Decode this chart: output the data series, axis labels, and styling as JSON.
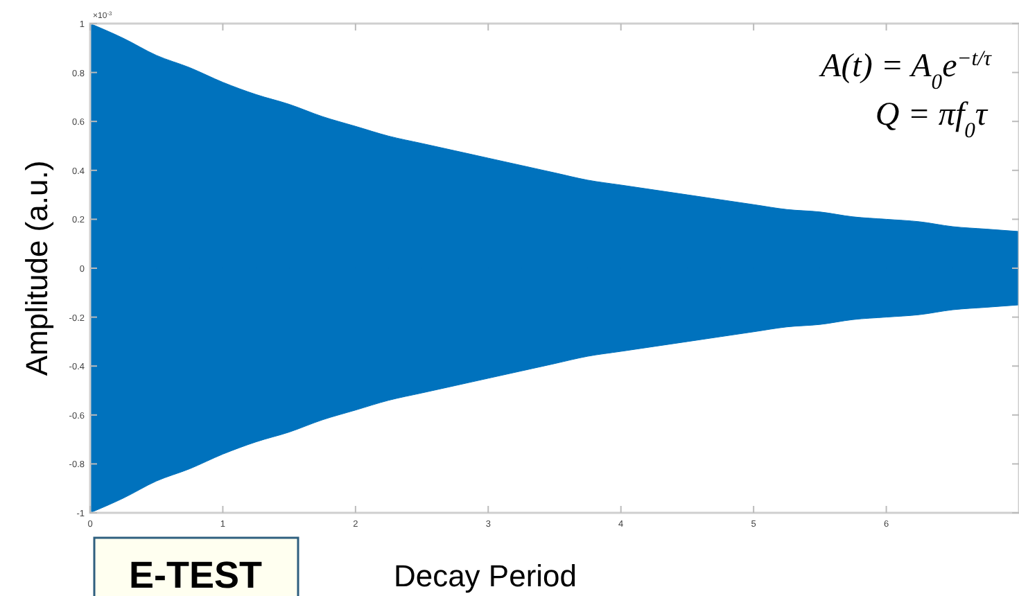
{
  "chart_data": {
    "type": "area",
    "xlabel": "Decay Period",
    "ylabel": "Amplitude (a.u.)",
    "x": [
      0,
      0.25,
      0.5,
      0.75,
      1,
      1.25,
      1.5,
      1.75,
      2,
      2.25,
      2.5,
      2.75,
      3,
      3.25,
      3.5,
      3.75,
      4,
      4.25,
      4.5,
      4.75,
      5,
      5.25,
      5.5,
      5.75,
      6,
      6.25,
      6.5,
      6.75,
      7
    ],
    "series": [
      {
        "color": "#0072bd",
        "values": [
          1,
          0.94,
          0.87,
          0.82,
          0.76,
          0.71,
          0.67,
          0.62,
          0.58,
          0.54,
          0.51,
          0.48,
          0.45,
          0.42,
          0.39,
          0.36,
          0.34,
          0.32,
          0.3,
          0.28,
          0.26,
          0.24,
          0.23,
          0.21,
          0.2,
          0.19,
          0.17,
          0.16,
          0.15
        ]
      },
      {
        "color": "#0072bd",
        "values": [
          -1,
          -0.94,
          -0.87,
          -0.82,
          -0.76,
          -0.71,
          -0.67,
          -0.62,
          -0.58,
          -0.54,
          -0.51,
          -0.48,
          -0.45,
          -0.42,
          -0.39,
          -0.36,
          -0.34,
          -0.32,
          -0.3,
          -0.28,
          -0.26,
          -0.24,
          -0.23,
          -0.21,
          -0.2,
          -0.19,
          -0.17,
          -0.16,
          -0.15
        ]
      }
    ],
    "xlim": [
      0,
      7
    ],
    "xticks": [
      0,
      1,
      2,
      3,
      4,
      5,
      6
    ],
    "ylim": [
      -1,
      1
    ],
    "yticks": [
      -1,
      -0.8,
      -0.6,
      -0.4,
      -0.2,
      0,
      0.2,
      0.4,
      0.6,
      0.8,
      1
    ],
    "grid": false,
    "annotations": [
      "×10$^{-3}$",
      "A(t) = A$_{0}$e$^{−t/τ}$",
      "Q = πf$_{0}$τ",
      "E-TEST"
    ]
  }
}
